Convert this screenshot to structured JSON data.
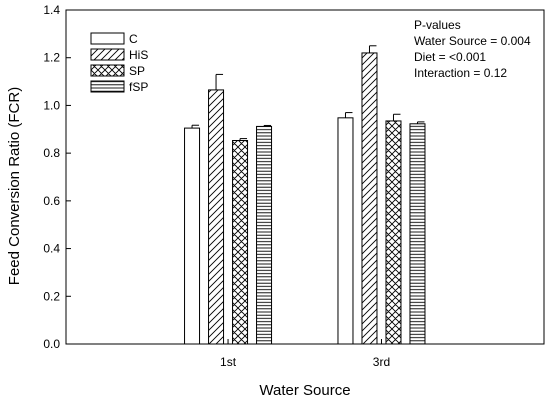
{
  "chart_data": {
    "type": "bar",
    "xlabel": "Water Source",
    "ylabel": "Feed Conversion Ratio (FCR)",
    "ylim": [
      0,
      1.4
    ],
    "yticks": [
      "0.0",
      "0.2",
      "0.4",
      "0.6",
      "0.8",
      "1.0",
      "1.2",
      "1.4"
    ],
    "categories": [
      "1st",
      "3rd"
    ],
    "series": [
      {
        "name": "C",
        "pattern": "none",
        "values": [
          0.905,
          0.948
        ],
        "errors": [
          0.012,
          0.022
        ]
      },
      {
        "name": "HiS",
        "pattern": "diagonal",
        "values": [
          1.065,
          1.22
        ],
        "errors": [
          0.065,
          0.03
        ]
      },
      {
        "name": "SP",
        "pattern": "cross",
        "values": [
          0.853,
          0.935
        ],
        "errors": [
          0.008,
          0.028
        ]
      },
      {
        "name": "fSP",
        "pattern": "horizontal",
        "values": [
          0.912,
          0.923
        ],
        "errors": [
          0.004,
          0.008
        ]
      }
    ],
    "legend_placement": "top-left",
    "grid": false,
    "annotation_lines": [
      "P-values",
      "Water Source = 0.004",
      "Diet = <0.001",
      "Interaction = 0.12"
    ]
  }
}
